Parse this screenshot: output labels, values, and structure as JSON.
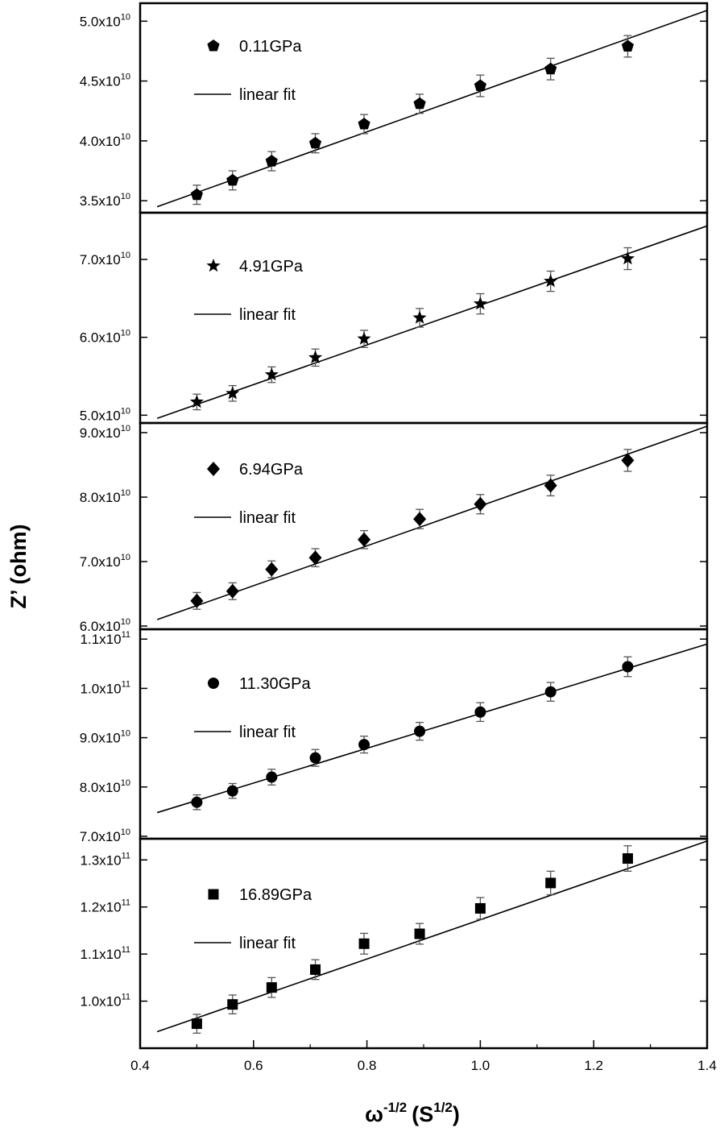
{
  "chart_data": {
    "type": "scatter",
    "ylabel": "Z’ (ohm)",
    "xlabel_base": "ω",
    "xlabel_exp": "-1/2",
    "xlabel_unit_base": "(S",
    "xlabel_unit_exp": "1/2",
    "xlabel_unit_close": ")",
    "x_ticks": [
      "0.4",
      "0.6",
      "0.8",
      "1.0",
      "1.2",
      "1.4"
    ],
    "xlim": [
      0.4,
      1.4
    ],
    "x": [
      0.5,
      0.563,
      0.632,
      0.709,
      0.795,
      0.893,
      1.0,
      1.124,
      1.26
    ],
    "fit_label": "linear fit",
    "panels": [
      {
        "name": "0.11GPa",
        "marker": "pentagon",
        "ylim": [
          34000000000.0,
          51500000000.0
        ],
        "y_ticks": [
          {
            "value": 35000000000.0,
            "mantissa": "3.5x10",
            "exp": "10"
          },
          {
            "value": 40000000000.0,
            "mantissa": "4.0x10",
            "exp": "10"
          },
          {
            "value": 45000000000.0,
            "mantissa": "4.5x10",
            "exp": "10"
          },
          {
            "value": 50000000000.0,
            "mantissa": "5.0x10",
            "exp": "10"
          }
        ],
        "y": [
          35500000000.0,
          36700000000.0,
          38300000000.0,
          39800000000.0,
          41400000000.0,
          43100000000.0,
          44600000000.0,
          46000000000.0,
          47900000000.0
        ],
        "err": [
          800000000.0,
          800000000.0,
          800000000.0,
          800000000.0,
          800000000.0,
          800000000.0,
          900000000.0,
          900000000.0,
          900000000.0
        ],
        "fit": [
          [
            0.43,
            34500000000.0
          ],
          [
            1.4,
            50900000000.0
          ]
        ]
      },
      {
        "name": "4.91GPa",
        "marker": "star",
        "ylim": [
          49000000000.0,
          76000000000.0
        ],
        "y_ticks": [
          {
            "value": 50000000000.0,
            "mantissa": "5.0x10",
            "exp": "10"
          },
          {
            "value": 60000000000.0,
            "mantissa": "6.0x10",
            "exp": "10"
          },
          {
            "value": 70000000000.0,
            "mantissa": "7.0x10",
            "exp": "10"
          }
        ],
        "y": [
          51700000000.0,
          52800000000.0,
          55200000000.0,
          57400000000.0,
          59800000000.0,
          62500000000.0,
          64300000000.0,
          67200000000.0,
          70100000000.0
        ],
        "err": [
          1000000000.0,
          1000000000.0,
          1000000000.0,
          1100000000.0,
          1100000000.0,
          1200000000.0,
          1300000000.0,
          1300000000.0,
          1400000000.0
        ],
        "fit": [
          [
            0.43,
            49600000000.0
          ],
          [
            1.4,
            74300000000.0
          ]
        ]
      },
      {
        "name": "6.94GPa",
        "marker": "diamond",
        "ylim": [
          59500000000.0,
          91500000000.0
        ],
        "y_ticks": [
          {
            "value": 60000000000.0,
            "mantissa": "6.0x10",
            "exp": "10"
          },
          {
            "value": 70000000000.0,
            "mantissa": "7.0x10",
            "exp": "10"
          },
          {
            "value": 80000000000.0,
            "mantissa": "8.0x10",
            "exp": "10"
          },
          {
            "value": 90000000000.0,
            "mantissa": "9.0x10",
            "exp": "10"
          }
        ],
        "y": [
          63900000000.0,
          65400000000.0,
          68800000000.0,
          70600000000.0,
          73400000000.0,
          76600000000.0,
          78900000000.0,
          81800000000.0,
          85700000000.0
        ],
        "err": [
          1300000000.0,
          1300000000.0,
          1300000000.0,
          1400000000.0,
          1400000000.0,
          1500000000.0,
          1500000000.0,
          1600000000.0,
          1700000000.0
        ],
        "fit": [
          [
            0.43,
            61000000000.0
          ],
          [
            1.4,
            91000000000.0
          ]
        ]
      },
      {
        "name": "11.30GPa",
        "marker": "circle",
        "ylim": [
          69500000000.0,
          112000000000.0
        ],
        "y_ticks": [
          {
            "value": 70000000000.0,
            "mantissa": "7.0x10",
            "exp": "10"
          },
          {
            "value": 80000000000.0,
            "mantissa": "8.0x10",
            "exp": "10"
          },
          {
            "value": 90000000000.0,
            "mantissa": "9.0x10",
            "exp": "10"
          },
          {
            "value": 100000000000.0,
            "mantissa": "1.0x10",
            "exp": "11"
          },
          {
            "value": 110000000000.0,
            "mantissa": "1.1x10",
            "exp": "11"
          }
        ],
        "y": [
          76900000000.0,
          79200000000.0,
          82000000000.0,
          85900000000.0,
          88600000000.0,
          91300000000.0,
          95200000000.0,
          99300000000.0,
          104400000000.0
        ],
        "err": [
          1500000000.0,
          1500000000.0,
          1600000000.0,
          1700000000.0,
          1700000000.0,
          1800000000.0,
          1900000000.0,
          1900000000.0,
          2000000000.0
        ],
        "fit": [
          [
            0.43,
            74800000000.0
          ],
          [
            1.4,
            109000000000.0
          ]
        ]
      },
      {
        "name": "16.89GPa",
        "marker": "square",
        "ylim": [
          90000000000.0,
          134500000000.0
        ],
        "y_ticks": [
          {
            "value": 100000000000.0,
            "mantissa": "1.0x10",
            "exp": "11"
          },
          {
            "value": 110000000000.0,
            "mantissa": "1.1x10",
            "exp": "11"
          },
          {
            "value": 120000000000.0,
            "mantissa": "1.2x10",
            "exp": "11"
          },
          {
            "value": 130000000000.0,
            "mantissa": "1.3x10",
            "exp": "11"
          }
        ],
        "y": [
          95200000000.0,
          99300000000.0,
          102900000000.0,
          106700000000.0,
          112200000000.0,
          114300000000.0,
          119700000000.0,
          125100000000.0,
          130300000000.0
        ],
        "err": [
          2000000000.0,
          2000000000.0,
          2100000000.0,
          2100000000.0,
          2200000000.0,
          2200000000.0,
          2300000000.0,
          2500000000.0,
          2700000000.0
        ],
        "fit": [
          [
            0.43,
            93500000000.0
          ],
          [
            1.4,
            134000000000.0
          ]
        ]
      }
    ]
  }
}
